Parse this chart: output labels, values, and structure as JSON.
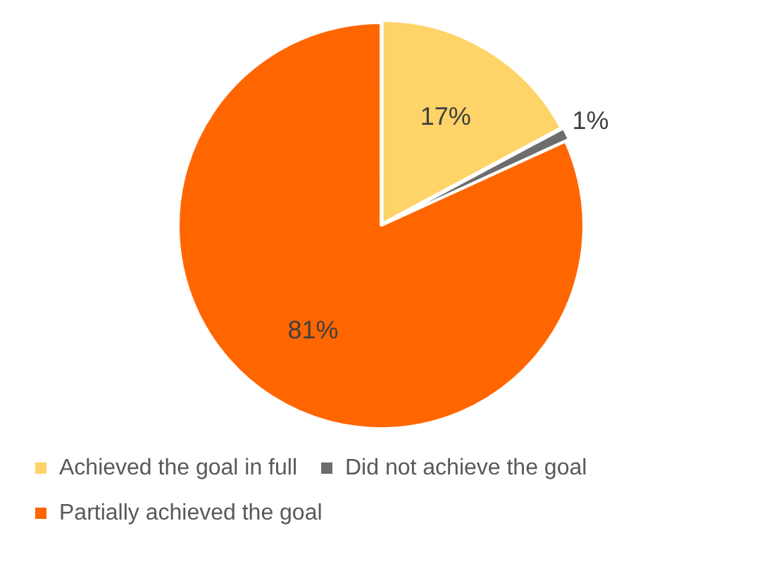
{
  "chart_data": {
    "type": "pie",
    "categories": [
      "Achieved the goal in full",
      "Did not achieve the goal",
      "Partially achieved the goal"
    ],
    "values": [
      17,
      1,
      81
    ],
    "colors": [
      "#fed367",
      "#6d6d6d",
      "#ff6600"
    ],
    "value_labels": [
      "17%",
      "1%",
      "81%"
    ],
    "legend": "bottom"
  }
}
